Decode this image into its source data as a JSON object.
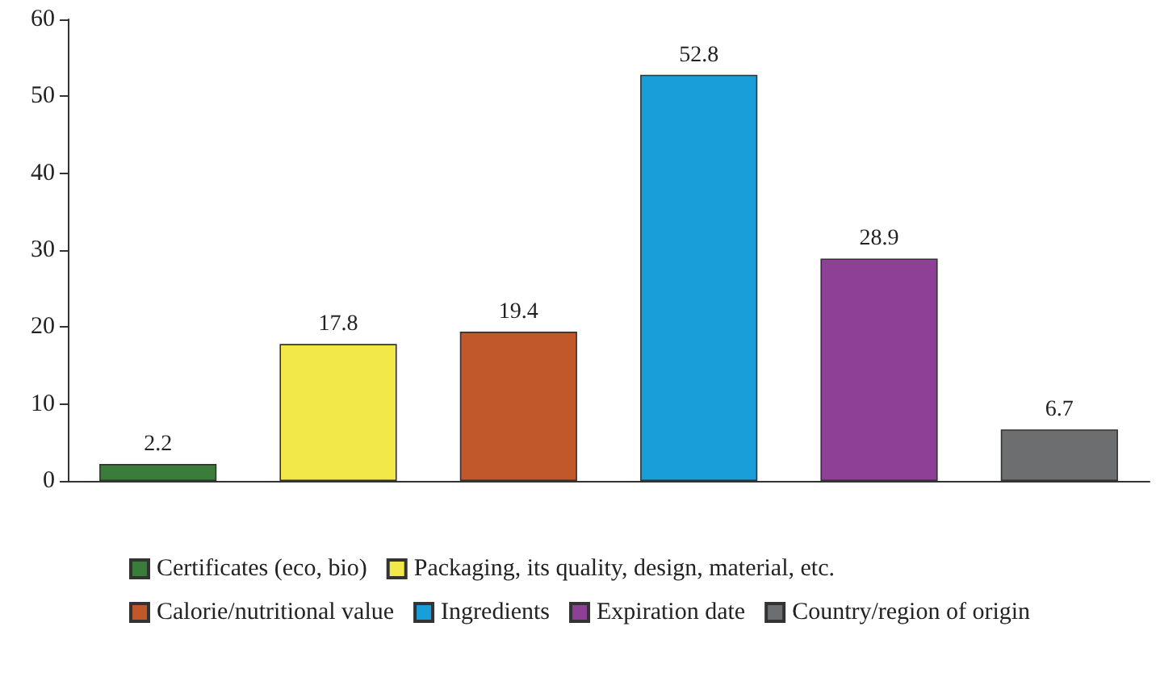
{
  "chart_data": {
    "type": "bar",
    "categories": [
      null,
      null,
      null,
      null,
      null,
      null
    ],
    "series": [
      {
        "name": "Certificates (eco, bio)",
        "color": "#3a7d3a",
        "values": [
          2.2,
          null,
          null,
          null,
          null,
          null
        ]
      },
      {
        "name": "Packaging, its quality, design, material, etc.",
        "color": "#f2e84a",
        "values": [
          null,
          17.8,
          null,
          null,
          null,
          null
        ]
      },
      {
        "name": "Calorie/nutritional value",
        "color": "#c0582a",
        "values": [
          null,
          null,
          19.4,
          null,
          null,
          null
        ]
      },
      {
        "name": "Ingredients",
        "color": "#1a9ed9",
        "values": [
          null,
          null,
          null,
          52.8,
          null,
          null
        ]
      },
      {
        "name": "Expiration date",
        "color": "#8e3f96",
        "values": [
          null,
          null,
          null,
          null,
          28.9,
          null
        ]
      },
      {
        "name": "Country/region of origin",
        "color": "#6d6e70",
        "values": [
          null,
          null,
          null,
          null,
          null,
          6.7
        ]
      }
    ],
    "ylim": [
      0,
      60
    ],
    "yticks": [
      0,
      10,
      20,
      30,
      40,
      50,
      60
    ],
    "data_labels": true,
    "grid": false,
    "legend": "bottom"
  }
}
